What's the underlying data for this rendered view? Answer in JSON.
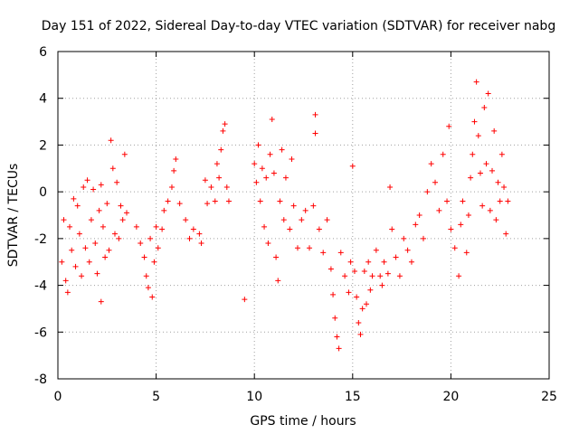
{
  "chart_data": {
    "type": "scatter",
    "title": "Day 151 of 2022, Sidereal Day-to-day VTEC variation (SDTVAR) for receiver nabg",
    "xlabel": "GPS time / hours",
    "ylabel": "SDTVAR / TECUs",
    "xlim": [
      0,
      25
    ],
    "ylim": [
      -8,
      6
    ],
    "xticks": [
      0,
      5,
      10,
      15,
      20,
      25
    ],
    "yticks": [
      -8,
      -6,
      -4,
      -2,
      0,
      2,
      4,
      6
    ],
    "grid": true,
    "marker": "+",
    "color": "#ff0000",
    "series": [
      {
        "name": "SDTVAR",
        "points": [
          [
            0.2,
            -3.0
          ],
          [
            0.3,
            -1.2
          ],
          [
            0.4,
            -3.8
          ],
          [
            0.5,
            -4.3
          ],
          [
            0.6,
            -1.5
          ],
          [
            0.7,
            -2.5
          ],
          [
            0.8,
            -0.3
          ],
          [
            0.9,
            -3.2
          ],
          [
            1.0,
            -0.6
          ],
          [
            1.1,
            -1.8
          ],
          [
            1.2,
            -3.6
          ],
          [
            1.3,
            0.2
          ],
          [
            1.4,
            -2.4
          ],
          [
            1.5,
            0.5
          ],
          [
            1.6,
            -3.0
          ],
          [
            1.7,
            -1.2
          ],
          [
            1.8,
            0.1
          ],
          [
            1.9,
            -2.2
          ],
          [
            2.0,
            -3.5
          ],
          [
            2.1,
            -0.8
          ],
          [
            2.2,
            0.3
          ],
          [
            2.3,
            -1.5
          ],
          [
            2.4,
            -2.8
          ],
          [
            2.2,
            -4.7
          ],
          [
            2.5,
            -0.5
          ],
          [
            2.6,
            -2.5
          ],
          [
            2.7,
            2.2
          ],
          [
            2.8,
            1.0
          ],
          [
            2.9,
            -1.8
          ],
          [
            3.0,
            0.4
          ],
          [
            3.1,
            -2.0
          ],
          [
            3.2,
            -0.6
          ],
          [
            3.3,
            -1.2
          ],
          [
            3.4,
            1.6
          ],
          [
            3.5,
            -0.9
          ],
          [
            4.0,
            -1.5
          ],
          [
            4.2,
            -2.2
          ],
          [
            4.4,
            -2.8
          ],
          [
            4.5,
            -3.6
          ],
          [
            4.6,
            -4.1
          ],
          [
            4.7,
            -2.0
          ],
          [
            4.8,
            -4.5
          ],
          [
            4.9,
            -3.0
          ],
          [
            5.0,
            -1.5
          ],
          [
            5.1,
            -2.4
          ],
          [
            5.3,
            -1.6
          ],
          [
            5.4,
            -0.8
          ],
          [
            5.6,
            -0.4
          ],
          [
            5.8,
            0.2
          ],
          [
            5.9,
            0.9
          ],
          [
            6.0,
            1.4
          ],
          [
            6.2,
            -0.5
          ],
          [
            6.5,
            -1.2
          ],
          [
            6.7,
            -2.0
          ],
          [
            6.9,
            -1.6
          ],
          [
            7.2,
            -1.8
          ],
          [
            7.3,
            -2.2
          ],
          [
            7.5,
            0.5
          ],
          [
            7.6,
            -0.5
          ],
          [
            7.8,
            0.2
          ],
          [
            8.0,
            -0.4
          ],
          [
            8.1,
            1.2
          ],
          [
            8.2,
            0.6
          ],
          [
            8.3,
            1.8
          ],
          [
            8.4,
            2.6
          ],
          [
            8.5,
            2.9
          ],
          [
            8.6,
            0.2
          ],
          [
            8.7,
            -0.4
          ],
          [
            9.5,
            -4.6
          ],
          [
            10.0,
            1.2
          ],
          [
            10.1,
            0.4
          ],
          [
            10.2,
            2.0
          ],
          [
            10.3,
            -0.4
          ],
          [
            10.4,
            1.0
          ],
          [
            10.5,
            -1.5
          ],
          [
            10.6,
            0.6
          ],
          [
            10.7,
            -2.2
          ],
          [
            10.8,
            1.6
          ],
          [
            10.9,
            3.1
          ],
          [
            11.0,
            0.8
          ],
          [
            11.1,
            -2.8
          ],
          [
            11.2,
            -3.8
          ],
          [
            11.3,
            -0.4
          ],
          [
            11.4,
            1.8
          ],
          [
            11.5,
            -1.2
          ],
          [
            11.6,
            0.6
          ],
          [
            11.8,
            -1.6
          ],
          [
            11.9,
            1.4
          ],
          [
            12.0,
            -0.6
          ],
          [
            12.2,
            -2.4
          ],
          [
            12.4,
            -1.2
          ],
          [
            12.6,
            -0.8
          ],
          [
            12.8,
            -2.4
          ],
          [
            13.0,
            -0.6
          ],
          [
            13.1,
            2.5
          ],
          [
            13.1,
            3.3
          ],
          [
            13.3,
            -1.6
          ],
          [
            13.5,
            -2.6
          ],
          [
            13.7,
            -1.2
          ],
          [
            13.9,
            -3.3
          ],
          [
            14.0,
            -4.4
          ],
          [
            14.1,
            -5.4
          ],
          [
            14.2,
            -6.2
          ],
          [
            14.3,
            -6.7
          ],
          [
            14.4,
            -2.6
          ],
          [
            14.6,
            -3.6
          ],
          [
            14.8,
            -4.3
          ],
          [
            14.9,
            -3.0
          ],
          [
            15.0,
            1.1
          ],
          [
            15.1,
            -3.4
          ],
          [
            15.2,
            -4.5
          ],
          [
            15.3,
            -5.6
          ],
          [
            15.4,
            -6.1
          ],
          [
            15.5,
            -5.0
          ],
          [
            15.6,
            -3.4
          ],
          [
            15.7,
            -4.8
          ],
          [
            15.8,
            -3.0
          ],
          [
            15.9,
            -4.2
          ],
          [
            16.0,
            -3.6
          ],
          [
            16.2,
            -2.5
          ],
          [
            16.4,
            -3.6
          ],
          [
            16.5,
            -4.0
          ],
          [
            16.6,
            -3.0
          ],
          [
            16.8,
            -3.5
          ],
          [
            16.9,
            0.2
          ],
          [
            17.0,
            -1.6
          ],
          [
            17.2,
            -2.8
          ],
          [
            17.4,
            -3.6
          ],
          [
            17.6,
            -2.0
          ],
          [
            17.8,
            -2.5
          ],
          [
            18.0,
            -3.0
          ],
          [
            18.2,
            -1.4
          ],
          [
            18.4,
            -1.0
          ],
          [
            18.6,
            -2.0
          ],
          [
            18.8,
            0.0
          ],
          [
            19.0,
            1.2
          ],
          [
            19.2,
            0.4
          ],
          [
            19.4,
            -0.8
          ],
          [
            19.6,
            1.6
          ],
          [
            19.8,
            -0.4
          ],
          [
            19.9,
            2.8
          ],
          [
            20.0,
            -1.6
          ],
          [
            20.2,
            -2.4
          ],
          [
            20.4,
            -3.6
          ],
          [
            20.5,
            -1.4
          ],
          [
            20.6,
            -0.4
          ],
          [
            20.8,
            -2.6
          ],
          [
            20.9,
            -1.0
          ],
          [
            21.0,
            0.6
          ],
          [
            21.1,
            1.6
          ],
          [
            21.2,
            3.0
          ],
          [
            21.3,
            4.7
          ],
          [
            21.4,
            2.4
          ],
          [
            21.5,
            0.8
          ],
          [
            21.6,
            -0.6
          ],
          [
            21.7,
            3.6
          ],
          [
            21.8,
            1.2
          ],
          [
            21.9,
            4.2
          ],
          [
            22.0,
            -0.8
          ],
          [
            22.1,
            0.9
          ],
          [
            22.2,
            2.6
          ],
          [
            22.3,
            -1.2
          ],
          [
            22.4,
            0.4
          ],
          [
            22.5,
            -0.4
          ],
          [
            22.6,
            1.6
          ],
          [
            22.7,
            0.2
          ],
          [
            22.8,
            -1.8
          ],
          [
            22.9,
            -0.4
          ]
        ]
      }
    ]
  }
}
